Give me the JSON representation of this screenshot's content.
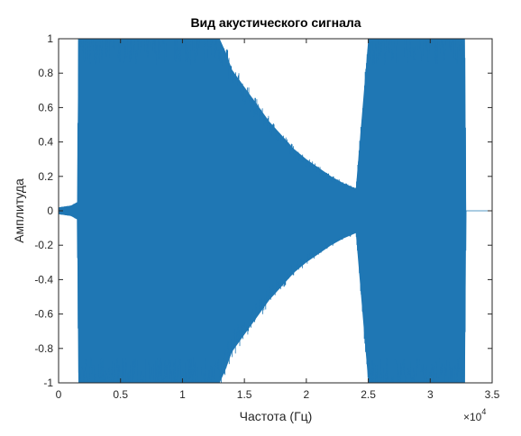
{
  "chart_data": {
    "type": "line",
    "title": "Вид акустического сигнала",
    "xlabel": "Частота (Гц)",
    "ylabel": "Амплитуда",
    "xlim": [
      0,
      35000
    ],
    "ylim": [
      -1,
      1
    ],
    "x_ticks": [
      0,
      5000,
      10000,
      15000,
      20000,
      25000,
      30000,
      35000
    ],
    "x_tick_labels": [
      "0",
      "0.5",
      "1",
      "1.5",
      "2",
      "2.5",
      "3",
      "3.5"
    ],
    "x_exponent_base": "×10",
    "x_exponent_power": "4",
    "y_ticks": [
      -1,
      -0.8,
      -0.6,
      -0.4,
      -0.2,
      0,
      0.2,
      0.4,
      0.6,
      0.8,
      1
    ],
    "y_tick_labels": [
      "-1",
      "-0.8",
      "-0.6",
      "-0.4",
      "-0.2",
      "0",
      "0.2",
      "0.4",
      "0.6",
      "0.8",
      "1"
    ],
    "grid": false,
    "line_color": "#1f77b4",
    "envelope": {
      "x": [
        0,
        1000,
        1500,
        1600,
        13000,
        13500,
        14000,
        15000,
        16000,
        17000,
        18000,
        19000,
        20000,
        21000,
        22000,
        23000,
        24000,
        25000,
        32800,
        32900,
        35000
      ],
      "upper": [
        0.02,
        0.03,
        0.05,
        1.0,
        1.0,
        0.92,
        0.82,
        0.72,
        0.62,
        0.52,
        0.44,
        0.36,
        0.3,
        0.25,
        0.2,
        0.16,
        0.13,
        1.0,
        1.0,
        0.0,
        0.0
      ],
      "lower": [
        -0.02,
        -0.03,
        -0.05,
        -1.0,
        -1.0,
        -0.92,
        -0.82,
        -0.72,
        -0.62,
        -0.52,
        -0.44,
        -0.36,
        -0.3,
        -0.25,
        -0.2,
        -0.16,
        -0.13,
        -1.0,
        -1.0,
        0.0,
        0.0
      ]
    }
  }
}
